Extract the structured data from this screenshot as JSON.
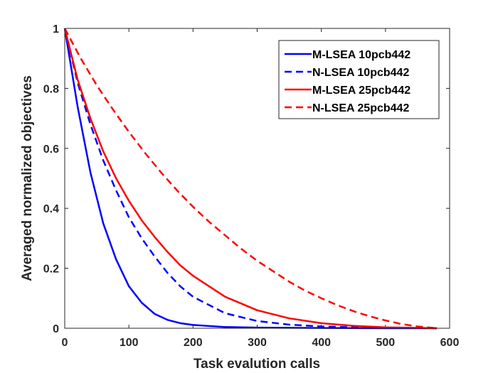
{
  "chart_data": {
    "type": "line",
    "title": "",
    "xlabel": "Task evalution calls",
    "ylabel": "Averaged normalized objectives",
    "xlim": [
      0,
      600
    ],
    "ylim": [
      0,
      1
    ],
    "xticks": [
      0,
      100,
      200,
      300,
      400,
      500,
      600
    ],
    "yticks": [
      0,
      0.2,
      0.4,
      0.6,
      0.8,
      1
    ],
    "xtick_labels": [
      "0",
      "100",
      "200",
      "300",
      "400",
      "500",
      "600"
    ],
    "ytick_labels": [
      "0",
      "0.2",
      "0.4",
      "0.6",
      "0.8",
      "1"
    ],
    "legend_position": "top-right",
    "series": [
      {
        "name": "M-LSEA 10pcb442",
        "color": "#0000ff",
        "style": "solid",
        "x": [
          0,
          20,
          40,
          60,
          80,
          100,
          120,
          140,
          160,
          180,
          200,
          250,
          300,
          400,
          500,
          580
        ],
        "y": [
          1.0,
          0.74,
          0.52,
          0.35,
          0.23,
          0.14,
          0.085,
          0.048,
          0.028,
          0.017,
          0.011,
          0.004,
          0.002,
          0.001,
          0.0,
          0.0
        ]
      },
      {
        "name": "N-LSEA 10pcb442",
        "color": "#0000ff",
        "style": "dashed",
        "x": [
          0,
          20,
          40,
          60,
          80,
          100,
          120,
          140,
          160,
          180,
          200,
          250,
          300,
          350,
          400,
          450,
          500,
          580
        ],
        "y": [
          1.0,
          0.82,
          0.68,
          0.56,
          0.46,
          0.37,
          0.3,
          0.24,
          0.185,
          0.14,
          0.105,
          0.05,
          0.024,
          0.012,
          0.006,
          0.003,
          0.001,
          0.0
        ]
      },
      {
        "name": "M-LSEA 25pcb442",
        "color": "#ff0000",
        "style": "solid",
        "x": [
          0,
          20,
          40,
          60,
          80,
          100,
          120,
          140,
          160,
          180,
          200,
          250,
          300,
          350,
          400,
          450,
          500,
          580
        ],
        "y": [
          1.0,
          0.83,
          0.7,
          0.59,
          0.5,
          0.425,
          0.36,
          0.305,
          0.255,
          0.21,
          0.175,
          0.105,
          0.06,
          0.033,
          0.017,
          0.008,
          0.003,
          0.0
        ]
      },
      {
        "name": "N-LSEA 25pcb442",
        "color": "#ff0000",
        "style": "dashed",
        "x": [
          0,
          25,
          50,
          75,
          100,
          125,
          150,
          175,
          200,
          225,
          250,
          275,
          300,
          325,
          350,
          375,
          400,
          425,
          450,
          475,
          500,
          525,
          550,
          580
        ],
        "y": [
          1.0,
          0.9,
          0.81,
          0.73,
          0.655,
          0.585,
          0.52,
          0.46,
          0.405,
          0.355,
          0.31,
          0.265,
          0.225,
          0.19,
          0.155,
          0.125,
          0.1,
          0.077,
          0.057,
          0.04,
          0.026,
          0.014,
          0.006,
          0.0
        ]
      }
    ]
  }
}
